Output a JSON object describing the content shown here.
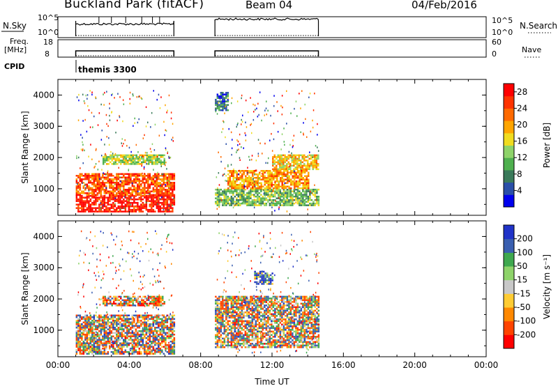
{
  "header": {
    "title": "Buckland Park (fitACF)",
    "beam": "Beam 04",
    "date": "04/Feb/2016"
  },
  "strip_panels": {
    "nsky": {
      "left_label": "N.Sky",
      "right_label": "N.Search",
      "left_ticks": [
        "10^5",
        "10^0"
      ],
      "right_ticks": [
        "10^5",
        "10^0"
      ]
    },
    "freq": {
      "left_label_line1": "Freq.",
      "left_label_line2": "[MHz]",
      "right_label": "Nave",
      "left_ticks": [
        "18",
        "8"
      ],
      "right_ticks": [
        "60",
        "0"
      ]
    },
    "cpid": {
      "label": "CPID",
      "program": "themis 3300"
    }
  },
  "colors": {
    "scale": [
      "#0000ee",
      "#2a4fa8",
      "#3a7a5a",
      "#4fb04f",
      "#8ed36a",
      "#f0dc20",
      "#ffa500",
      "#ff6a00",
      "#ff3300",
      "#ff0000"
    ]
  },
  "chart_data": [
    {
      "type": "heatmap",
      "panel": "power",
      "xlabel": "",
      "ylabel": "Slant Range [km]",
      "x_ticks": [
        "00:00",
        "04:00",
        "08:00",
        "12:00",
        "16:00",
        "20:00",
        "00:00"
      ],
      "y_ticks": [
        "1000",
        "2000",
        "3000",
        "4000"
      ],
      "ylim": [
        150,
        4500
      ],
      "xlim_hours": [
        0,
        24
      ],
      "colorbar": {
        "label": "Power [dB]",
        "ticks": [
          "4",
          "8",
          "12",
          "16",
          "20",
          "24",
          "28"
        ],
        "range": [
          0,
          30
        ]
      },
      "data_intervals_hours": [
        [
          1.0,
          6.5
        ],
        [
          8.8,
          14.6
        ]
      ],
      "regions": [
        {
          "t": [
            1.0,
            6.5
          ],
          "range_km": [
            250,
            800
          ],
          "value_db": 28
        },
        {
          "t": [
            1.0,
            6.5
          ],
          "range_km": [
            800,
            1500
          ],
          "value_db": 24
        },
        {
          "t": [
            2.5,
            6.0
          ],
          "range_km": [
            1800,
            2100
          ],
          "value_db": 14
        },
        {
          "t": [
            8.8,
            14.6
          ],
          "range_km": [
            450,
            1000
          ],
          "value_db": 12
        },
        {
          "t": [
            9.5,
            14.0
          ],
          "range_km": [
            1000,
            1600
          ],
          "value_db": 20
        },
        {
          "t": [
            12.0,
            14.6
          ],
          "range_km": [
            1600,
            2100
          ],
          "value_db": 18
        },
        {
          "t": [
            8.8,
            9.5
          ],
          "range_km": [
            3500,
            4100
          ],
          "value_db": 6
        }
      ]
    },
    {
      "type": "heatmap",
      "panel": "velocity",
      "xlabel": "Time UT",
      "ylabel": "Slant Range [km]",
      "x_ticks": [
        "00:00",
        "04:00",
        "08:00",
        "12:00",
        "16:00",
        "20:00",
        "00:00"
      ],
      "y_ticks": [
        "1000",
        "2000",
        "3000",
        "4000"
      ],
      "ylim": [
        150,
        4500
      ],
      "xlim_hours": [
        0,
        24
      ],
      "colorbar": {
        "label": "Velocity [m s⁻¹]",
        "ticks": [
          "200",
          "100",
          "50",
          "15",
          "-15",
          "-50",
          "-100",
          "-200"
        ],
        "range": [
          -250,
          250
        ]
      },
      "data_intervals_hours": [
        [
          1.0,
          6.5
        ],
        [
          8.8,
          14.6
        ]
      ],
      "regions": [
        {
          "t": [
            1.0,
            6.5
          ],
          "range_km": [
            250,
            1500
          ],
          "value_ms": 0
        },
        {
          "t": [
            2.5,
            6.0
          ],
          "range_km": [
            1800,
            2100
          ],
          "value_ms": -50
        },
        {
          "t": [
            8.8,
            14.6
          ],
          "range_km": [
            450,
            2100
          ],
          "value_ms": 0
        },
        {
          "t": [
            11.0,
            12.0
          ],
          "range_km": [
            2500,
            2900
          ],
          "value_ms": 150
        }
      ]
    }
  ]
}
